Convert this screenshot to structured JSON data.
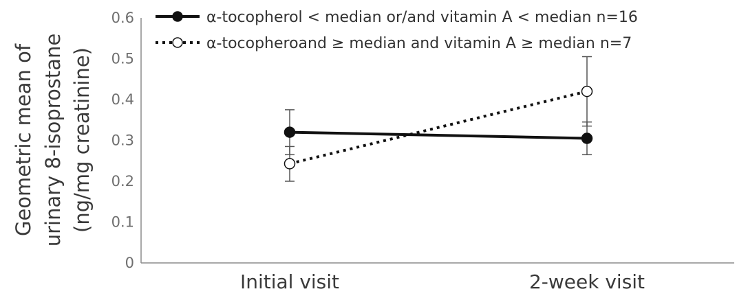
{
  "chart_data": {
    "type": "line",
    "ylabel_lines": [
      "Geometric mean of",
      "urinary 8-isoprostane",
      "(ng/mg creatinine)"
    ],
    "categories": [
      "Initial visit",
      "2-week visit"
    ],
    "ylim": [
      0,
      0.6
    ],
    "yticks": [
      "0",
      "0.1",
      "0.2",
      "0.3",
      "0.4",
      "0.5",
      "0.6"
    ],
    "grid": false,
    "legend_position": "top",
    "series": [
      {
        "name": "α-tocopherol < median or/and vitamin A < median n=16",
        "values": [
          0.32,
          0.305
        ],
        "error_low": [
          0.265,
          0.265
        ],
        "error_high": [
          0.375,
          0.345
        ],
        "line_style": "solid",
        "marker": "filled-circle",
        "color": "#111111"
      },
      {
        "name": "α-tocopheroand ≥ median and vitamin A ≥ median n=7",
        "values": [
          0.243,
          0.42
        ],
        "error_low": [
          0.2,
          0.335
        ],
        "error_high": [
          0.285,
          0.505
        ],
        "line_style": "dotted",
        "marker": "open-circle",
        "color": "#111111"
      }
    ]
  }
}
